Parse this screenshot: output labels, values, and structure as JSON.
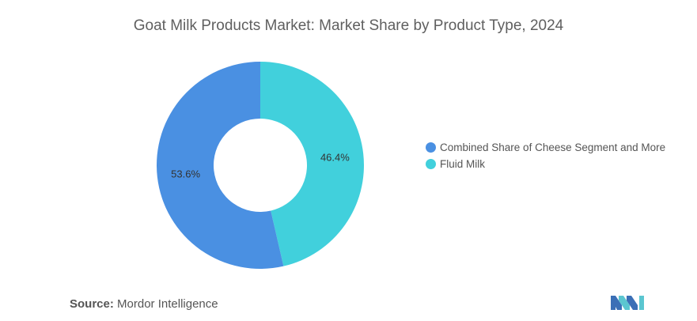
{
  "chart_data": {
    "type": "pie",
    "title": "Goat Milk Products Market: Market Share by Product Type, 2024",
    "hole": "donut",
    "series": [
      {
        "name": "Combined Share of Cheese Segment and More",
        "value": 53.6,
        "label": "53.6%",
        "color": "#4a90e2"
      },
      {
        "name": "Fluid Milk",
        "value": 46.4,
        "label": "46.4%",
        "color": "#41d0dc"
      }
    ],
    "legend_position": "right"
  },
  "source": {
    "label": "Source:",
    "text": "Mordor Intelligence"
  },
  "logo": {
    "icon": "mordor-intelligence-logo-icon",
    "colors": [
      "#3b6fb6",
      "#5bc6d0"
    ]
  }
}
